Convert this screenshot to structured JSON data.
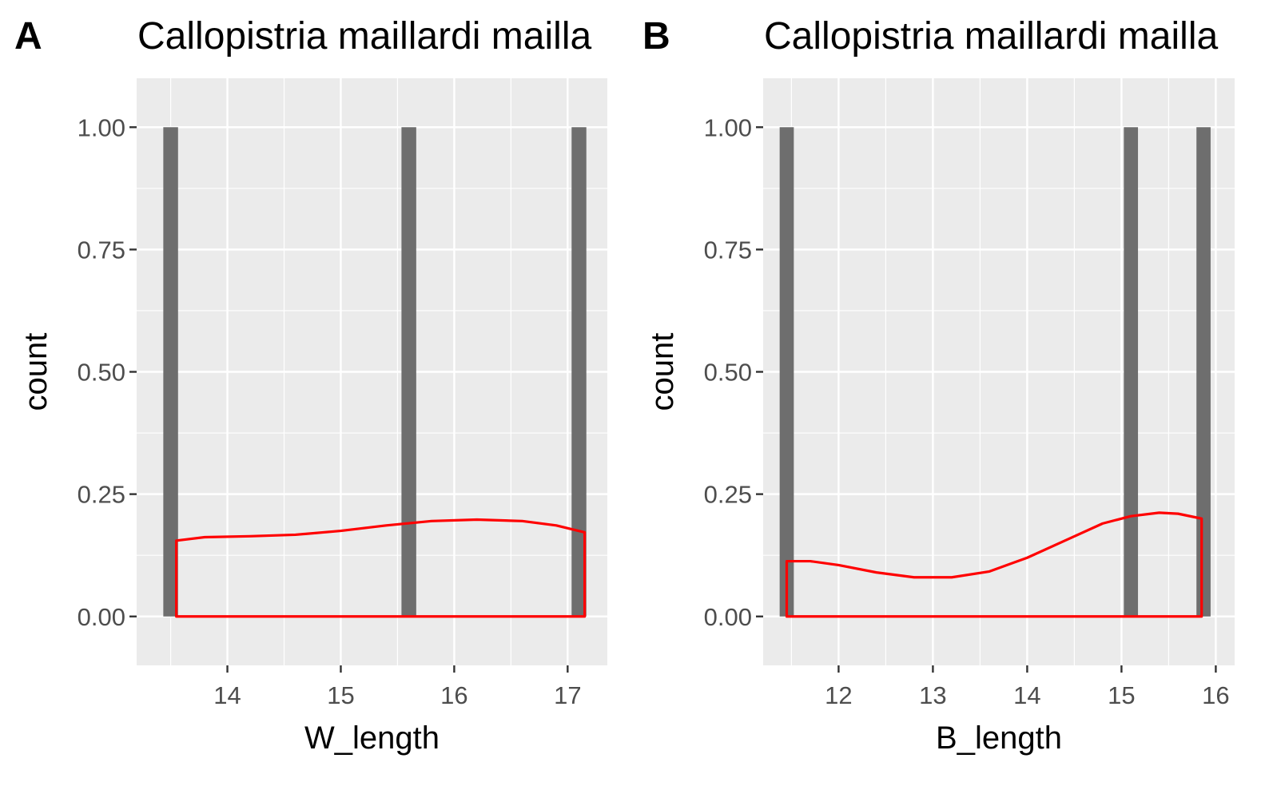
{
  "chart_data": [
    {
      "type": "bar",
      "panel_tag": "A",
      "title": "Callopistria maillardi mailla",
      "xlabel": "W_length",
      "ylabel": "count",
      "xlim": [
        13.2,
        17.35
      ],
      "ylim": [
        -0.1,
        1.1
      ],
      "x_ticks": [
        14,
        15,
        16,
        17
      ],
      "x_tick_labels": [
        "14",
        "15",
        "16",
        "17"
      ],
      "y_ticks": [
        0,
        0.25,
        0.5,
        0.75,
        1.0
      ],
      "y_tick_labels": [
        "0.00",
        "0.25",
        "0.50",
        "0.75",
        "1.00"
      ],
      "grid": true,
      "bars": [
        {
          "x": 13.5,
          "count": 1
        },
        {
          "x": 15.6,
          "count": 1
        },
        {
          "x": 17.1,
          "count": 1
        }
      ],
      "bar_width": 0.13,
      "density_curve": {
        "x": [
          13.55,
          13.8,
          14.2,
          14.6,
          15.0,
          15.4,
          15.8,
          16.2,
          16.6,
          16.9,
          17.15
        ],
        "y": [
          0.155,
          0.162,
          0.164,
          0.167,
          0.175,
          0.186,
          0.195,
          0.198,
          0.195,
          0.186,
          0.172
        ]
      },
      "colors": {
        "bar": "#6e6e6e",
        "density": "#ff0000",
        "panel_bg": "#ebebeb",
        "grid": "#ffffff"
      }
    },
    {
      "type": "bar",
      "panel_tag": "B",
      "title": "Callopistria maillardi mailla",
      "xlabel": "B_length",
      "ylabel": "count",
      "xlim": [
        11.2,
        16.2
      ],
      "ylim": [
        -0.1,
        1.1
      ],
      "x_ticks": [
        12,
        13,
        14,
        15,
        16
      ],
      "x_tick_labels": [
        "12",
        "13",
        "14",
        "15",
        "16"
      ],
      "y_ticks": [
        0,
        0.25,
        0.5,
        0.75,
        1.0
      ],
      "y_tick_labels": [
        "0.00",
        "0.25",
        "0.50",
        "0.75",
        "1.00"
      ],
      "grid": true,
      "bars": [
        {
          "x": 11.45,
          "count": 1
        },
        {
          "x": 15.1,
          "count": 1
        },
        {
          "x": 15.87,
          "count": 1
        }
      ],
      "bar_width": 0.15,
      "density_curve": {
        "x": [
          11.45,
          11.7,
          12.0,
          12.4,
          12.8,
          13.2,
          13.6,
          14.0,
          14.4,
          14.8,
          15.1,
          15.4,
          15.6,
          15.85
        ],
        "y": [
          0.113,
          0.113,
          0.105,
          0.09,
          0.08,
          0.08,
          0.092,
          0.12,
          0.155,
          0.19,
          0.205,
          0.212,
          0.21,
          0.2
        ]
      },
      "colors": {
        "bar": "#6e6e6e",
        "density": "#ff0000",
        "panel_bg": "#ebebeb",
        "grid": "#ffffff"
      }
    }
  ]
}
